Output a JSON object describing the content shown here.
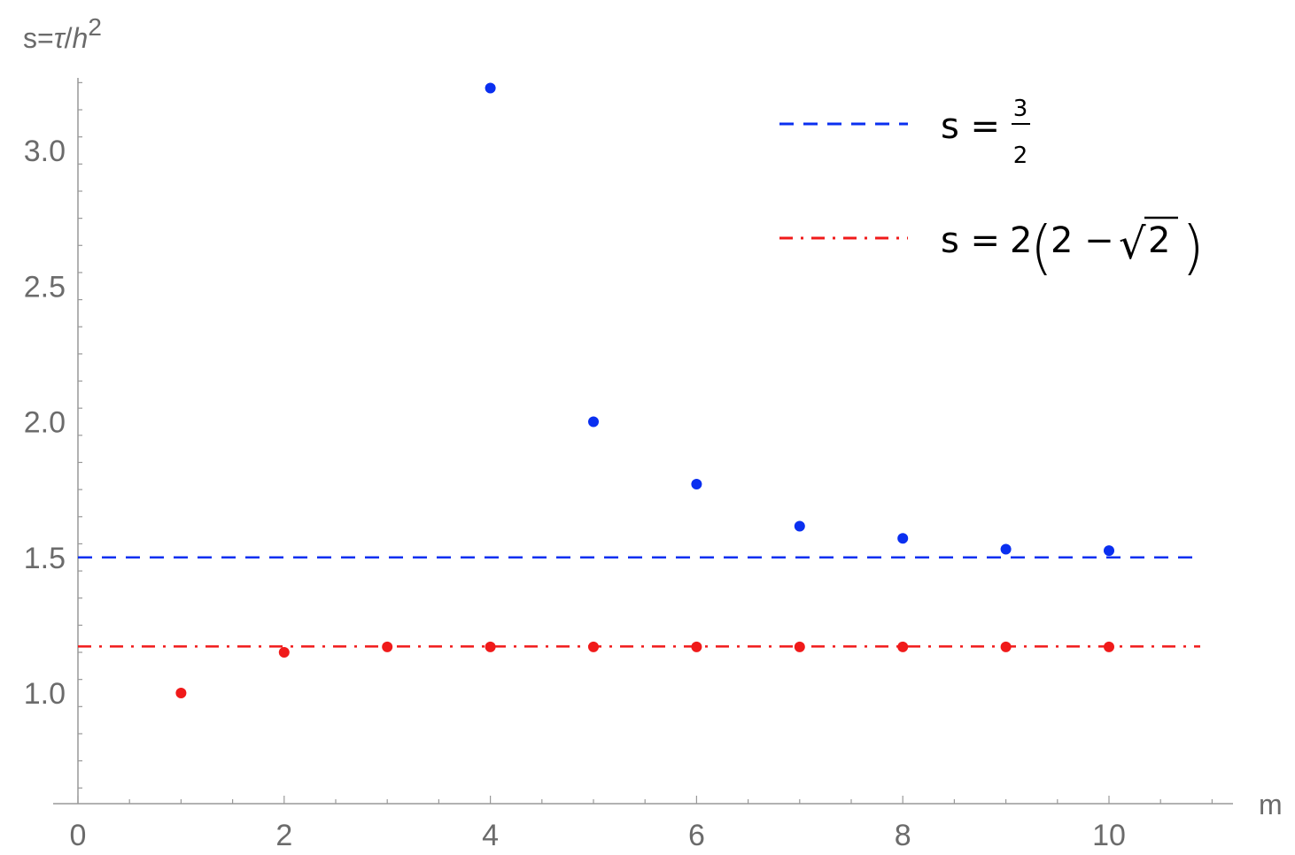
{
  "chart_data": {
    "type": "scatter",
    "xlabel": "m",
    "ylabel_main": "s=",
    "ylabel_tau": "τ",
    "ylabel_slash": "/",
    "ylabel_h": "h",
    "ylabel_exp": "2",
    "xlim": [
      0,
      11.1
    ],
    "ylim": [
      0.6,
      3.45
    ],
    "x_ticks": [
      0,
      2,
      4,
      6,
      8,
      10
    ],
    "x_tick_labels": [
      "0",
      "2",
      "4",
      "6",
      "8",
      "10"
    ],
    "y_ticks": [
      1.0,
      1.5,
      2.0,
      2.5,
      3.0
    ],
    "y_tick_labels": [
      "1.0",
      "1.5",
      "2.0",
      "2.5",
      "3.0"
    ],
    "grid": false,
    "legend_position": "top-right",
    "series": [
      {
        "color": "#0a2ff0",
        "x": [
          4,
          5,
          6,
          7,
          8,
          9,
          10
        ],
        "y": [
          3.23,
          2.0,
          1.77,
          1.615,
          1.57,
          1.53,
          1.525
        ]
      },
      {
        "color": "#f01a1a",
        "x": [
          1,
          2,
          3,
          4,
          5,
          6,
          7,
          8,
          9,
          10
        ],
        "y": [
          1.0,
          1.15,
          1.17,
          1.17,
          1.17,
          1.17,
          1.17,
          1.17,
          1.17,
          1.17
        ]
      }
    ],
    "reference_lines": [
      {
        "y": 1.5,
        "color": "#0a2ff0",
        "style": "dashed",
        "legend_prefix": "s =",
        "legend_num": "3",
        "legend_den": "2"
      },
      {
        "y": 1.1716,
        "color": "#f01a1a",
        "style": "dash-dot",
        "legend_prefix": "s =",
        "legend_coef": "2",
        "legend_open": "(",
        "legend_inner": "2 −",
        "legend_root": "√",
        "legend_radicand": "2",
        "legend_close": ")"
      }
    ]
  }
}
